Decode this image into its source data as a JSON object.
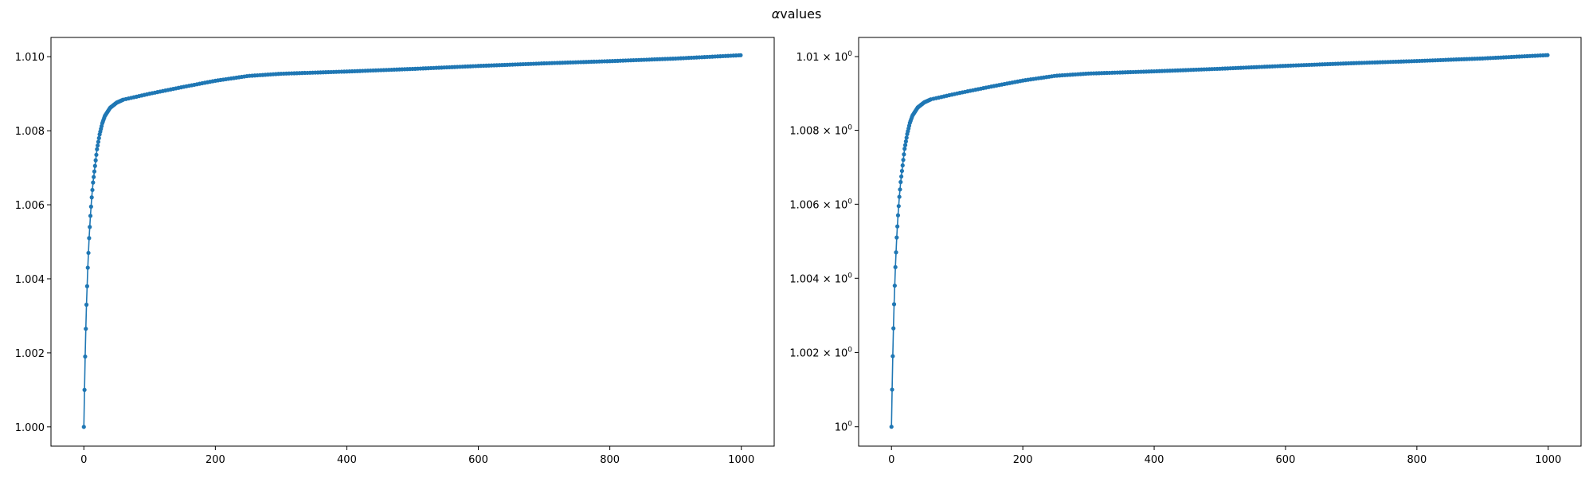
{
  "figure": {
    "title_symbol": "α",
    "title_text": "values"
  },
  "chart_data": [
    {
      "type": "line",
      "marker": "dot",
      "line_color": "#1f77b4",
      "title": "",
      "xlabel": "",
      "ylabel": "",
      "yscale": "linear",
      "xlim": [
        -50,
        1050
      ],
      "ylim": [
        0.99948,
        1.01052
      ],
      "xticks": [
        0,
        200,
        400,
        600,
        800,
        1000
      ],
      "xtick_labels": [
        "0",
        "200",
        "400",
        "600",
        "800",
        "1000"
      ],
      "yticks": [
        1.0,
        1.002,
        1.004,
        1.006,
        1.008,
        1.01
      ],
      "ytick_labels": [
        "1.000",
        "1.002",
        "1.004",
        "1.006",
        "1.008",
        "1.010"
      ],
      "grid": false,
      "series": [
        {
          "x_range": [
            0,
            999
          ],
          "key_points": [
            [
              0,
              1.0
            ],
            [
              1,
              1.001
            ],
            [
              2,
              1.0019
            ],
            [
              3,
              1.00265
            ],
            [
              4,
              1.0033
            ],
            [
              5,
              1.0038
            ],
            [
              6,
              1.0043
            ],
            [
              7,
              1.0047
            ],
            [
              8,
              1.0051
            ],
            [
              9,
              1.0054
            ],
            [
              10,
              1.0057
            ],
            [
              12,
              1.0062
            ],
            [
              14,
              1.0066
            ],
            [
              16,
              1.0069
            ],
            [
              18,
              1.0072
            ],
            [
              20,
              1.0075
            ],
            [
              24,
              1.0079
            ],
            [
              28,
              1.0082
            ],
            [
              32,
              1.0084
            ],
            [
              40,
              1.00862
            ],
            [
              50,
              1.00876
            ],
            [
              60,
              1.00884
            ],
            [
              80,
              1.00892
            ],
            [
              100,
              1.009
            ],
            [
              150,
              1.00918
            ],
            [
              200,
              1.00935
            ],
            [
              250,
              1.00948
            ],
            [
              300,
              1.00954
            ],
            [
              400,
              1.0096
            ],
            [
              500,
              1.00967
            ],
            [
              600,
              1.00975
            ],
            [
              700,
              1.00982
            ],
            [
              800,
              1.00988
            ],
            [
              900,
              1.00995
            ],
            [
              999,
              1.01004
            ]
          ]
        }
      ]
    },
    {
      "type": "line",
      "marker": "dot",
      "line_color": "#1f77b4",
      "title": "",
      "xlabel": "",
      "ylabel": "",
      "yscale": "log",
      "xlim": [
        -50,
        1050
      ],
      "ylim": [
        0.99948,
        1.01052
      ],
      "xticks": [
        0,
        200,
        400,
        600,
        800,
        1000
      ],
      "xtick_labels": [
        "0",
        "200",
        "400",
        "600",
        "800",
        "1000"
      ],
      "yticks": [
        1.0,
        1.002,
        1.004,
        1.006,
        1.008,
        1.01
      ],
      "ytick_labels": [
        {
          "base": "10",
          "exp": "0"
        },
        {
          "base": "1.002 × 10",
          "exp": "0"
        },
        {
          "base": "1.004 × 10",
          "exp": "0"
        },
        {
          "base": "1.006 × 10",
          "exp": "0"
        },
        {
          "base": "1.008 × 10",
          "exp": "0"
        },
        {
          "base": "1.01 × 10",
          "exp": "0"
        }
      ],
      "grid": false,
      "series": [
        {
          "x_range": [
            0,
            999
          ],
          "key_points": [
            [
              0,
              1.0
            ],
            [
              1,
              1.001
            ],
            [
              2,
              1.0019
            ],
            [
              3,
              1.00265
            ],
            [
              4,
              1.0033
            ],
            [
              5,
              1.0038
            ],
            [
              6,
              1.0043
            ],
            [
              7,
              1.0047
            ],
            [
              8,
              1.0051
            ],
            [
              9,
              1.0054
            ],
            [
              10,
              1.0057
            ],
            [
              12,
              1.0062
            ],
            [
              14,
              1.0066
            ],
            [
              16,
              1.0069
            ],
            [
              18,
              1.0072
            ],
            [
              20,
              1.0075
            ],
            [
              24,
              1.0079
            ],
            [
              28,
              1.0082
            ],
            [
              32,
              1.0084
            ],
            [
              40,
              1.00862
            ],
            [
              50,
              1.00876
            ],
            [
              60,
              1.00884
            ],
            [
              80,
              1.00892
            ],
            [
              100,
              1.009
            ],
            [
              150,
              1.00918
            ],
            [
              200,
              1.00935
            ],
            [
              250,
              1.00948
            ],
            [
              300,
              1.00954
            ],
            [
              400,
              1.0096
            ],
            [
              500,
              1.00967
            ],
            [
              600,
              1.00975
            ],
            [
              700,
              1.00982
            ],
            [
              800,
              1.00988
            ],
            [
              900,
              1.00995
            ],
            [
              999,
              1.01004
            ]
          ]
        }
      ]
    }
  ]
}
